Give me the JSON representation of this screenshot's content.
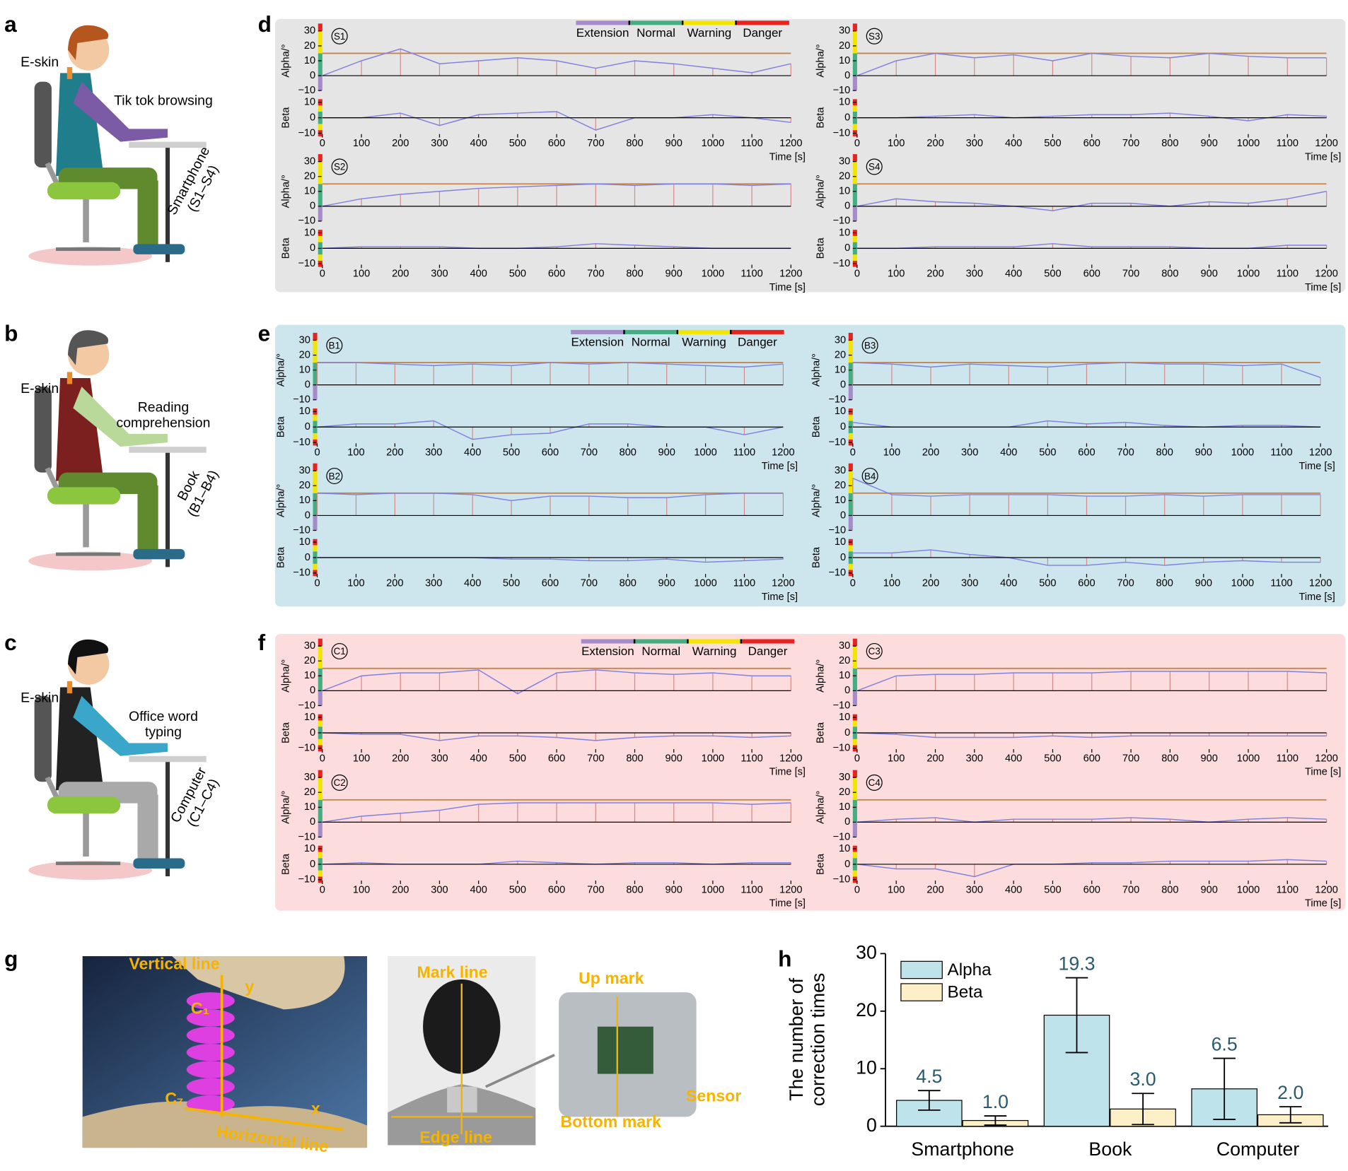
{
  "panel_labels": [
    "a",
    "b",
    "c",
    "d",
    "e",
    "f",
    "g",
    "h"
  ],
  "scenes": [
    {
      "eskin": "E-skin",
      "activity": [
        "Tik tok browsing"
      ],
      "device": "Smartphone",
      "subjects": "(S1–S4)",
      "shirt": "#7b5aa6",
      "vest": "#1f7d8c",
      "pants": "#5f8a2e",
      "hair": "#b5561f"
    },
    {
      "eskin": "E-skin",
      "activity": [
        "Reading",
        "comprehension"
      ],
      "device": "Book",
      "subjects": "(B1–B4)",
      "shirt": "#b9d99a",
      "vest": "#7b1f1f",
      "pants": "#5f8a2e",
      "hair": "#555555"
    },
    {
      "eskin": "E-skin",
      "activity": [
        "Office word",
        "typing"
      ],
      "device": "Computer",
      "subjects": "(C1–C4)",
      "shirt": "#3aa6c9",
      "vest": "#222222",
      "pants": "#a9a9a9",
      "hair": "#111111"
    }
  ],
  "zones": [
    {
      "name": "Extension",
      "color": "#a58bc9"
    },
    {
      "name": "Normal",
      "color": "#45ad82"
    },
    {
      "name": "Warning",
      "color": "#f2e500"
    },
    {
      "name": "Danger",
      "color": "#e8231f"
    }
  ],
  "alpha_zones": [
    {
      "from": -10,
      "to": 0,
      "color": "#a58bc9"
    },
    {
      "from": 0,
      "to": 15,
      "color": "#45ad82"
    },
    {
      "from": 15,
      "to": 30,
      "color": "#f2e500"
    },
    {
      "from": 30,
      "to": 35,
      "color": "#e8231f"
    }
  ],
  "beta_zones": [
    {
      "from": -12,
      "to": -8,
      "color": "#e8231f"
    },
    {
      "from": -8,
      "to": -4,
      "color": "#f2e500"
    },
    {
      "from": -4,
      "to": 4,
      "color": "#45ad82"
    },
    {
      "from": 4,
      "to": 8,
      "color": "#f2e500"
    },
    {
      "from": 8,
      "to": 12,
      "color": "#e8231f"
    }
  ],
  "threshold": 15,
  "threshold_color": "#c8834a",
  "stem_color": "#d48a8a",
  "trace_color": "#8080e0",
  "time_axis": {
    "xlim": [
      0,
      1200
    ],
    "xticks": [
      0,
      100,
      200,
      300,
      400,
      500,
      600,
      700,
      800,
      900,
      1000,
      1100,
      1200
    ],
    "xlabel": "Time [s]"
  },
  "alpha_axis": {
    "ylim": [
      -10,
      35
    ],
    "yticks": [
      {
        "value": -10,
        "label": "−10"
      },
      0,
      10,
      20,
      30
    ],
    "ylabel": "Alpha/°"
  },
  "beta_axis": {
    "ylim": [
      -12,
      12
    ],
    "yticks": [
      {
        "value": -10,
        "label": "−10"
      },
      0,
      10
    ],
    "ylabel": "Beta"
  },
  "sample_times": [
    0,
    100,
    200,
    300,
    400,
    500,
    600,
    700,
    800,
    900,
    1000,
    1100,
    1200
  ],
  "groups": [
    {
      "background": "#e5e5e5",
      "sessions": [
        {
          "label": "S1",
          "alpha": [
            0,
            10,
            18,
            8,
            10,
            12,
            10,
            5,
            10,
            8,
            5,
            2,
            8
          ],
          "beta": [
            0,
            0,
            3,
            -5,
            2,
            3,
            4,
            -8,
            0,
            0,
            2,
            0,
            -3
          ]
        },
        {
          "label": "S2",
          "alpha": [
            0,
            5,
            8,
            10,
            12,
            13,
            14,
            15,
            14,
            15,
            15,
            14,
            15
          ],
          "beta": [
            0,
            1,
            1,
            1,
            0,
            0,
            1,
            3,
            2,
            1,
            0,
            0,
            0
          ]
        },
        {
          "label": "S3",
          "alpha": [
            0,
            10,
            15,
            12,
            14,
            10,
            15,
            13,
            12,
            15,
            13,
            12,
            12
          ],
          "beta": [
            0,
            0,
            1,
            2,
            0,
            1,
            2,
            2,
            3,
            1,
            -2,
            2,
            1
          ]
        },
        {
          "label": "S4",
          "alpha": [
            0,
            5,
            3,
            2,
            0,
            -3,
            2,
            2,
            0,
            3,
            2,
            5,
            10
          ],
          "beta": [
            0,
            0,
            1,
            1,
            1,
            3,
            1,
            1,
            1,
            0,
            0,
            2,
            2
          ]
        }
      ]
    },
    {
      "background": "#cde6ee",
      "sessions": [
        {
          "label": "B1",
          "alpha": [
            15,
            15,
            14,
            13,
            14,
            13,
            15,
            14,
            15,
            14,
            13,
            12,
            14
          ],
          "beta": [
            0,
            2,
            2,
            4,
            -8,
            -5,
            -4,
            2,
            2,
            0,
            0,
            -5,
            0
          ]
        },
        {
          "label": "B2",
          "alpha": [
            15,
            14,
            15,
            15,
            14,
            10,
            13,
            13,
            12,
            12,
            14,
            15,
            15
          ],
          "beta": [
            0,
            0,
            0,
            0,
            0,
            -1,
            -1,
            -2,
            -2,
            -1,
            -3,
            -2,
            -1
          ]
        },
        {
          "label": "B3",
          "alpha": [
            15,
            14,
            12,
            14,
            13,
            12,
            14,
            15,
            14,
            14,
            13,
            14,
            5
          ],
          "beta": [
            3,
            0,
            0,
            0,
            0,
            4,
            2,
            3,
            1,
            0,
            1,
            1,
            0
          ]
        },
        {
          "label": "B4",
          "alpha": [
            25,
            14,
            13,
            14,
            14,
            14,
            13,
            13,
            14,
            13,
            14,
            14,
            14
          ],
          "beta": [
            3,
            3,
            5,
            2,
            0,
            -5,
            -5,
            -3,
            -5,
            -3,
            -2,
            -3,
            -3
          ]
        }
      ]
    },
    {
      "background": "#fcdcdc",
      "sessions": [
        {
          "label": "C1",
          "alpha": [
            0,
            10,
            12,
            12,
            14,
            -2,
            12,
            14,
            12,
            11,
            12,
            10,
            10
          ],
          "beta": [
            0,
            -1,
            -1,
            -5,
            -2,
            -2,
            -3,
            -5,
            -3,
            -2,
            -2,
            -3,
            -2
          ]
        },
        {
          "label": "C2",
          "alpha": [
            0,
            4,
            6,
            8,
            12,
            13,
            13,
            13,
            13,
            13,
            13,
            12,
            13
          ],
          "beta": [
            0,
            1,
            0,
            0,
            0,
            2,
            1,
            0,
            1,
            1,
            0,
            1,
            1
          ]
        },
        {
          "label": "C3",
          "alpha": [
            0,
            10,
            11,
            11,
            12,
            12,
            12,
            13,
            13,
            13,
            13,
            13,
            12
          ],
          "beta": [
            0,
            -1,
            -3,
            -3,
            -3,
            -2,
            -3,
            -2,
            -2,
            -2,
            -2,
            -2,
            -2
          ]
        },
        {
          "label": "C4",
          "alpha": [
            0,
            2,
            3,
            0,
            2,
            2,
            2,
            3,
            2,
            0,
            2,
            3,
            2
          ],
          "beta": [
            0,
            -3,
            -3,
            -8,
            0,
            0,
            1,
            1,
            2,
            2,
            2,
            3,
            2
          ]
        }
      ]
    }
  ],
  "photos": {
    "vertical": "Vertical line",
    "y": "y",
    "c1": "C₁",
    "c7": "C₇",
    "x": "x",
    "horizontal": "Horizontal line",
    "mark": "Mark line",
    "edge": "Edge line",
    "up": "Up mark",
    "sensor": "Sensor",
    "bottom": "Bottom mark"
  },
  "chart_data": {
    "type": "bar",
    "categories": [
      "Smartphone",
      "Book",
      "Computer"
    ],
    "series": [
      {
        "name": "Alpha",
        "color": "#bfe3ea",
        "values": [
          4.5,
          19.3,
          6.5
        ],
        "errors": [
          1.7,
          6.5,
          5.3
        ],
        "value_labels": [
          "4.5",
          "19.3",
          "6.5"
        ]
      },
      {
        "name": "Beta",
        "color": "#fdf0c8",
        "values": [
          1.0,
          3.0,
          2.0
        ],
        "errors": [
          0.8,
          2.7,
          1.4
        ],
        "value_labels": [
          "1.0",
          "3.0",
          "2.0"
        ]
      }
    ],
    "label_color": "#2b5a6e",
    "ylim": [
      0,
      30
    ],
    "yticks": [
      0,
      10,
      20,
      30
    ],
    "ylabel": [
      "The number of",
      "correction times"
    ]
  }
}
